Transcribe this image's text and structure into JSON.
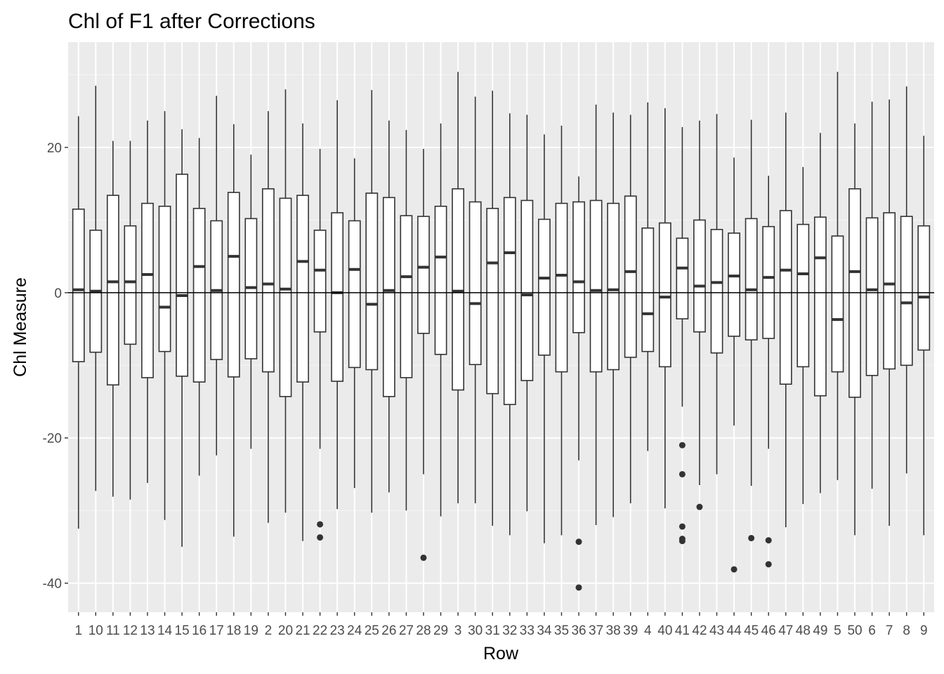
{
  "chart_data": {
    "type": "boxplot",
    "title": "Chl of F1 after Corrections",
    "xlabel": "Row",
    "ylabel": "Chl Measure",
    "ylim": [
      -44,
      34.5
    ],
    "yticks": [
      -40,
      -20,
      0,
      20
    ],
    "ytick_labels": [
      "-40",
      "-20",
      "0",
      "20"
    ],
    "reference_line_y": 0,
    "grid": true,
    "colors": {
      "panel": "#ebebeb",
      "grid_major": "#ffffff",
      "grid_minor": "#f5f5f5",
      "box_fill": "#ffffff",
      "line": "#333333",
      "outlier": "#333333"
    },
    "categories": [
      "1",
      "10",
      "11",
      "12",
      "13",
      "14",
      "15",
      "16",
      "17",
      "18",
      "19",
      "2",
      "20",
      "21",
      "22",
      "23",
      "24",
      "25",
      "26",
      "27",
      "28",
      "29",
      "3",
      "30",
      "31",
      "32",
      "33",
      "34",
      "35",
      "36",
      "37",
      "38",
      "39",
      "4",
      "40",
      "41",
      "42",
      "43",
      "44",
      "45",
      "46",
      "47",
      "48",
      "49",
      "5",
      "50",
      "6",
      "7",
      "8",
      "9"
    ],
    "boxes": [
      {
        "min": -32.5,
        "q1": -9.5,
        "median": 0.4,
        "q3": 11.5,
        "max": 24.3,
        "outliers": []
      },
      {
        "min": -27.3,
        "q1": -8.2,
        "median": 0.2,
        "q3": 8.6,
        "max": 28.5,
        "outliers": []
      },
      {
        "min": -28.1,
        "q1": -12.7,
        "median": 1.5,
        "q3": 13.4,
        "max": 20.9,
        "outliers": []
      },
      {
        "min": -28.5,
        "q1": -7.1,
        "median": 1.5,
        "q3": 9.2,
        "max": 20.9,
        "outliers": []
      },
      {
        "min": -26.2,
        "q1": -11.7,
        "median": 2.5,
        "q3": 12.3,
        "max": 23.7,
        "outliers": []
      },
      {
        "min": -31.3,
        "q1": -8.1,
        "median": -2.0,
        "q3": 11.9,
        "max": 25.0,
        "outliers": []
      },
      {
        "min": -35.0,
        "q1": -11.5,
        "median": -0.4,
        "q3": 16.3,
        "max": 22.5,
        "outliers": []
      },
      {
        "min": -25.2,
        "q1": -12.3,
        "median": 3.6,
        "q3": 11.6,
        "max": 21.3,
        "outliers": []
      },
      {
        "min": -22.4,
        "q1": -9.2,
        "median": 0.3,
        "q3": 9.9,
        "max": 27.1,
        "outliers": []
      },
      {
        "min": -33.6,
        "q1": -11.6,
        "median": 5.0,
        "q3": 13.8,
        "max": 23.2,
        "outliers": []
      },
      {
        "min": -21.5,
        "q1": -9.1,
        "median": 0.7,
        "q3": 10.2,
        "max": 19.0,
        "outliers": []
      },
      {
        "min": -31.7,
        "q1": -10.9,
        "median": 1.2,
        "q3": 14.3,
        "max": 25.0,
        "outliers": []
      },
      {
        "min": -30.3,
        "q1": -14.3,
        "median": 0.5,
        "q3": 13.0,
        "max": 28.0,
        "outliers": []
      },
      {
        "min": -34.2,
        "q1": -12.3,
        "median": 4.3,
        "q3": 13.4,
        "max": 23.3,
        "outliers": []
      },
      {
        "min": -21.5,
        "q1": -5.4,
        "median": 3.1,
        "q3": 8.6,
        "max": 19.8,
        "outliers": [
          -31.9,
          -33.7
        ]
      },
      {
        "min": -29.8,
        "q1": -12.2,
        "median": 0.0,
        "q3": 11.0,
        "max": 26.5,
        "outliers": []
      },
      {
        "min": -26.9,
        "q1": -10.3,
        "median": 3.2,
        "q3": 9.9,
        "max": 18.5,
        "outliers": []
      },
      {
        "min": -30.3,
        "q1": -10.6,
        "median": -1.6,
        "q3": 13.7,
        "max": 27.9,
        "outliers": []
      },
      {
        "min": -27.5,
        "q1": -14.3,
        "median": 0.3,
        "q3": 13.1,
        "max": 23.7,
        "outliers": []
      },
      {
        "min": -30.0,
        "q1": -11.7,
        "median": 2.2,
        "q3": 10.6,
        "max": 22.4,
        "outliers": []
      },
      {
        "min": -25.0,
        "q1": -5.6,
        "median": 3.5,
        "q3": 10.5,
        "max": 19.8,
        "outliers": [
          -36.5
        ]
      },
      {
        "min": -30.8,
        "q1": -8.5,
        "median": 4.9,
        "q3": 11.9,
        "max": 23.3,
        "outliers": []
      },
      {
        "min": -29.0,
        "q1": -13.4,
        "median": 0.2,
        "q3": 14.3,
        "max": 30.4,
        "outliers": []
      },
      {
        "min": -29.0,
        "q1": -9.9,
        "median": -1.5,
        "q3": 12.5,
        "max": 27.0,
        "outliers": []
      },
      {
        "min": -32.1,
        "q1": -13.9,
        "median": 4.1,
        "q3": 11.6,
        "max": 27.8,
        "outliers": []
      },
      {
        "min": -33.4,
        "q1": -15.4,
        "median": 5.5,
        "q3": 13.1,
        "max": 24.7,
        "outliers": []
      },
      {
        "min": -30.1,
        "q1": -12.1,
        "median": -0.3,
        "q3": 12.7,
        "max": 24.5,
        "outliers": []
      },
      {
        "min": -34.5,
        "q1": -8.6,
        "median": 2.0,
        "q3": 10.1,
        "max": 21.8,
        "outliers": []
      },
      {
        "min": -33.4,
        "q1": -10.9,
        "median": 2.4,
        "q3": 12.3,
        "max": 23.0,
        "outliers": []
      },
      {
        "min": -23.1,
        "q1": -5.5,
        "median": 1.5,
        "q3": 12.5,
        "max": 16.0,
        "outliers": [
          -34.3,
          -40.6
        ]
      },
      {
        "min": -32.0,
        "q1": -10.9,
        "median": 0.3,
        "q3": 12.7,
        "max": 25.9,
        "outliers": []
      },
      {
        "min": -30.9,
        "q1": -10.6,
        "median": 0.4,
        "q3": 12.3,
        "max": 24.8,
        "outliers": []
      },
      {
        "min": -29.0,
        "q1": -8.9,
        "median": 2.9,
        "q3": 13.3,
        "max": 24.5,
        "outliers": []
      },
      {
        "min": -21.8,
        "q1": -8.1,
        "median": -2.9,
        "q3": 8.9,
        "max": 26.2,
        "outliers": []
      },
      {
        "min": -29.7,
        "q1": -10.2,
        "median": -0.6,
        "q3": 9.6,
        "max": 25.4,
        "outliers": []
      },
      {
        "min": -15.7,
        "q1": -3.6,
        "median": 3.4,
        "q3": 7.5,
        "max": 22.8,
        "outliers": [
          -21.0,
          -25.0,
          -32.2,
          -33.9,
          -34.2
        ]
      },
      {
        "min": -26.5,
        "q1": -5.4,
        "median": 0.9,
        "q3": 10.0,
        "max": 23.7,
        "outliers": [
          -29.5
        ]
      },
      {
        "min": -25.0,
        "q1": -8.3,
        "median": 1.4,
        "q3": 8.7,
        "max": 24.6,
        "outliers": []
      },
      {
        "min": -18.3,
        "q1": -6.0,
        "median": 2.3,
        "q3": 8.2,
        "max": 18.6,
        "outliers": [
          -38.1
        ]
      },
      {
        "min": -26.6,
        "q1": -6.5,
        "median": 0.4,
        "q3": 10.2,
        "max": 23.8,
        "outliers": [
          -33.8
        ]
      },
      {
        "min": -21.5,
        "q1": -6.3,
        "median": 2.1,
        "q3": 9.1,
        "max": 16.1,
        "outliers": [
          -34.1,
          -37.4
        ]
      },
      {
        "min": -32.3,
        "q1": -12.6,
        "median": 3.1,
        "q3": 11.3,
        "max": 24.8,
        "outliers": []
      },
      {
        "min": -29.1,
        "q1": -10.2,
        "median": 2.6,
        "q3": 9.4,
        "max": 17.3,
        "outliers": []
      },
      {
        "min": -27.6,
        "q1": -14.2,
        "median": 4.8,
        "q3": 10.4,
        "max": 22.0,
        "outliers": []
      },
      {
        "min": -25.8,
        "q1": -10.9,
        "median": -3.7,
        "q3": 7.8,
        "max": 30.4,
        "outliers": []
      },
      {
        "min": -33.4,
        "q1": -14.4,
        "median": 2.9,
        "q3": 14.3,
        "max": 23.3,
        "outliers": []
      },
      {
        "min": -27.0,
        "q1": -11.4,
        "median": 0.4,
        "q3": 10.3,
        "max": 26.3,
        "outliers": []
      },
      {
        "min": -32.1,
        "q1": -10.5,
        "median": 1.2,
        "q3": 11.0,
        "max": 26.6,
        "outliers": []
      },
      {
        "min": -24.9,
        "q1": -10.0,
        "median": -1.4,
        "q3": 10.5,
        "max": 28.4,
        "outliers": []
      },
      {
        "min": -33.4,
        "q1": -7.9,
        "median": -0.6,
        "q3": 9.2,
        "max": 21.6,
        "outliers": []
      }
    ]
  }
}
